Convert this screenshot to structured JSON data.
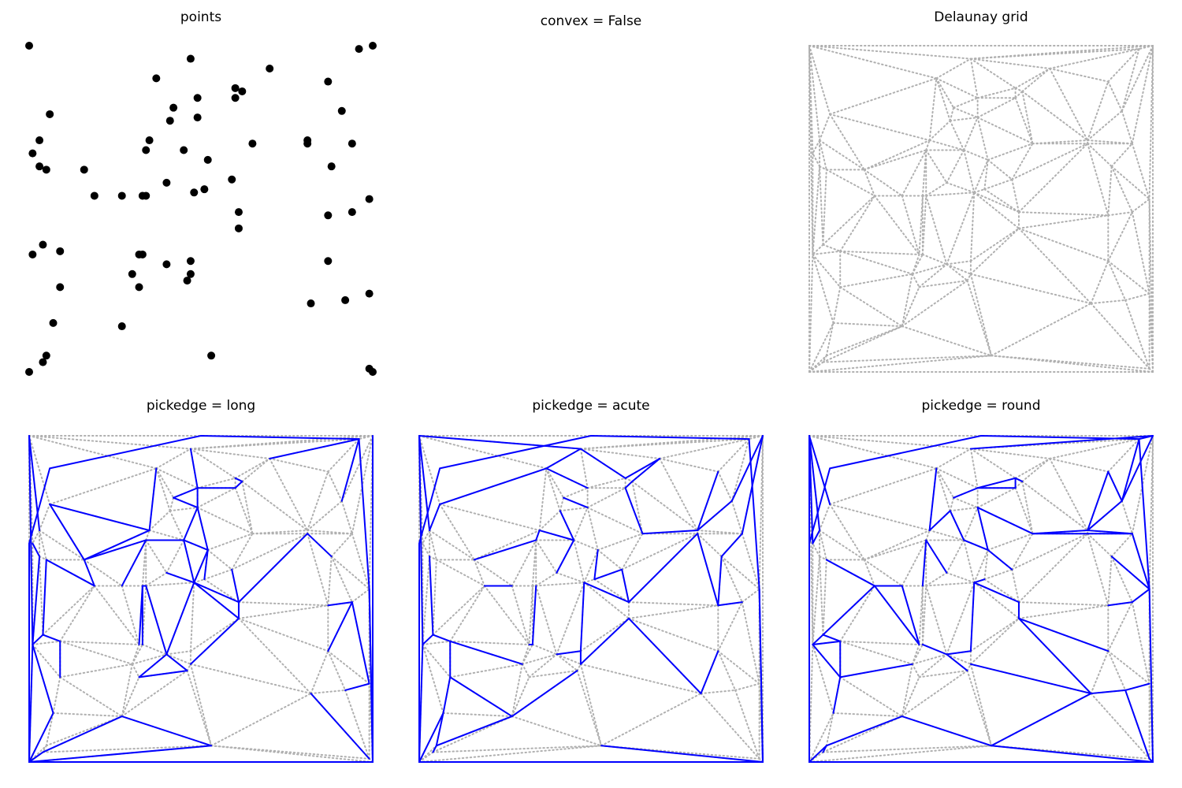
{
  "figure": {
    "titles": {
      "points": "points",
      "convex": "convex = False",
      "delaunay": "Delaunay grid",
      "long": "pickedge = long",
      "acute": "pickedge = acute",
      "round": "pickedge = round"
    }
  },
  "chart_data": [
    {
      "type": "scatter",
      "title": "points",
      "xlim": [
        0,
        100
      ],
      "ylim": [
        0,
        100
      ],
      "axes": "off",
      "marker_color": "#000000",
      "points": [
        [
          0,
          0
        ],
        [
          0,
          100
        ],
        [
          100,
          0
        ],
        [
          100,
          100
        ],
        [
          5,
          5
        ],
        [
          4,
          3
        ],
        [
          4,
          39
        ],
        [
          3,
          63
        ],
        [
          3,
          71
        ],
        [
          5,
          62
        ],
        [
          1,
          67
        ],
        [
          7,
          15
        ],
        [
          1,
          36
        ],
        [
          9,
          37
        ],
        [
          9,
          26
        ],
        [
          6,
          79
        ],
        [
          16,
          62
        ],
        [
          19,
          54
        ],
        [
          27,
          54
        ],
        [
          30,
          30
        ],
        [
          27,
          14
        ],
        [
          32,
          26
        ],
        [
          33,
          36
        ],
        [
          33,
          54
        ],
        [
          34,
          54
        ],
        [
          34,
          68
        ],
        [
          32,
          36
        ],
        [
          35,
          71
        ],
        [
          37,
          90
        ],
        [
          40,
          58
        ],
        [
          40,
          33
        ],
        [
          41,
          77
        ],
        [
          42,
          81
        ],
        [
          45,
          68
        ],
        [
          46,
          28
        ],
        [
          47,
          34
        ],
        [
          47,
          30
        ],
        [
          48,
          55
        ],
        [
          47,
          96
        ],
        [
          49,
          78
        ],
        [
          49,
          84
        ],
        [
          51,
          56
        ],
        [
          52,
          65
        ],
        [
          53,
          5
        ],
        [
          59,
          59
        ],
        [
          60,
          87
        ],
        [
          60,
          84
        ],
        [
          61,
          49
        ],
        [
          61,
          44
        ],
        [
          62,
          86
        ],
        [
          65,
          70
        ],
        [
          70,
          93
        ],
        [
          81,
          70
        ],
        [
          81,
          71
        ],
        [
          82,
          21
        ],
        [
          87,
          89
        ],
        [
          87,
          48
        ],
        [
          87,
          34
        ],
        [
          88,
          63
        ],
        [
          91,
          80
        ],
        [
          92,
          22
        ],
        [
          94,
          70
        ],
        [
          94,
          49
        ],
        [
          96,
          99
        ],
        [
          99,
          53
        ],
        [
          99,
          1
        ],
        [
          99,
          24
        ]
      ]
    },
    {
      "type": "line",
      "title": "convex = False",
      "axes": "off",
      "series": []
    },
    {
      "type": "line",
      "title": "Delaunay grid",
      "xlim": [
        0,
        100
      ],
      "ylim": [
        0,
        100
      ],
      "axes": "off",
      "grid_color": "#b0b0b0",
      "grid_style": "dotted"
    },
    {
      "type": "line",
      "title": "pickedge = long",
      "axes": "off",
      "edge_color": "#0000ff",
      "grid_color": "#b0b0b0",
      "boundary": [
        [
          0,
          100
        ],
        [
          5,
          5
        ],
        [
          3,
          63
        ],
        [
          9,
          37
        ],
        [
          3,
          71
        ],
        [
          10,
          48
        ],
        [
          16,
          62
        ],
        [
          27,
          54
        ],
        [
          27,
          14
        ],
        [
          34,
          54
        ],
        [
          32,
          36
        ],
        [
          34,
          68
        ],
        [
          40,
          33
        ],
        [
          33,
          23
        ],
        [
          27,
          14
        ],
        [
          40,
          57
        ],
        [
          49,
          68
        ],
        [
          45,
          68
        ],
        [
          40,
          58
        ],
        [
          32,
          36
        ],
        [
          41,
          77
        ],
        [
          47,
          84
        ],
        [
          47,
          96
        ],
        [
          59,
          59
        ],
        [
          60,
          87
        ],
        [
          60,
          84
        ],
        [
          46,
          68
        ],
        [
          36,
          65
        ],
        [
          40,
          58
        ],
        [
          47,
          30
        ],
        [
          42,
          81
        ],
        [
          36,
          88
        ],
        [
          37,
          90
        ],
        [
          40,
          58
        ],
        [
          52,
          65
        ],
        [
          50,
          77
        ],
        [
          59,
          59
        ],
        [
          59,
          70
        ],
        [
          61,
          44
        ],
        [
          62,
          86
        ],
        [
          70,
          93
        ],
        [
          62,
          87
        ],
        [
          62,
          86
        ],
        [
          60,
          87
        ],
        [
          96,
          99
        ],
        [
          99,
          53
        ],
        [
          99,
          24
        ],
        [
          100,
          0
        ],
        [
          99,
          1
        ],
        [
          99,
          22
        ],
        [
          82,
          21
        ],
        [
          87,
          48
        ],
        [
          87,
          72
        ],
        [
          81,
          71
        ],
        [
          96,
          70
        ],
        [
          94,
          80
        ],
        [
          99,
          100
        ],
        [
          100,
          100
        ],
        [
          0,
          100
        ],
        [
          0,
          0
        ],
        [
          100,
          0
        ],
        [
          99,
          1
        ]
      ]
    },
    {
      "type": "line",
      "title": "pickedge = acute",
      "axes": "off",
      "edge_color": "#0000ff",
      "grid_color": "#b0b0b0"
    },
    {
      "type": "line",
      "title": "pickedge = round",
      "axes": "off",
      "edge_color": "#0000ff",
      "grid_color": "#b0b0b0"
    }
  ]
}
